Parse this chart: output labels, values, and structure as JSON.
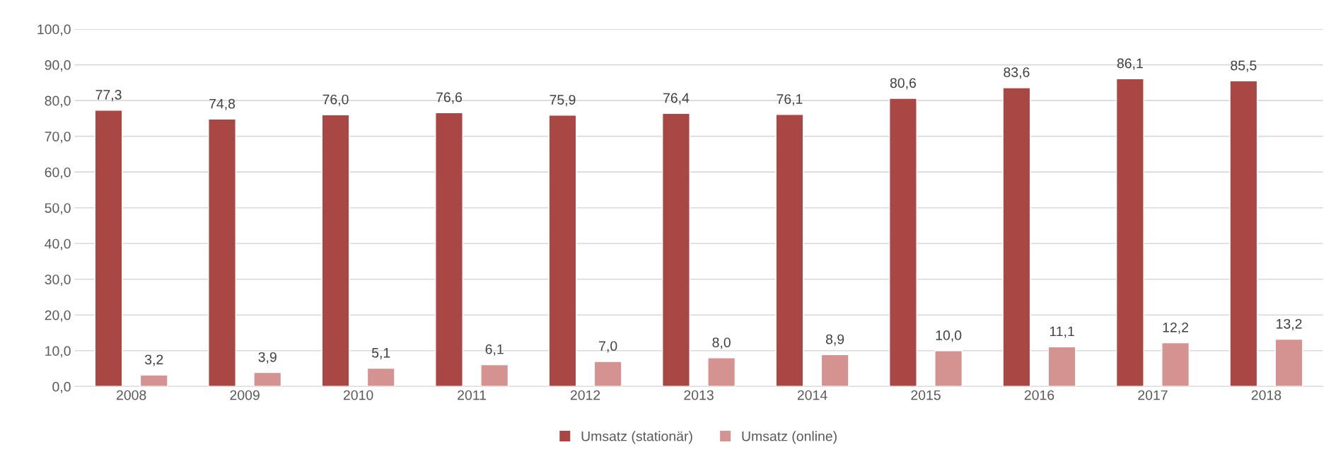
{
  "chart_data": {
    "type": "bar",
    "categories": [
      "2008",
      "2009",
      "2010",
      "2011",
      "2012",
      "2013",
      "2014",
      "2015",
      "2016",
      "2017",
      "2018"
    ],
    "series": [
      {
        "name": "Umsatz (stationär)",
        "color": "#a94744",
        "values": [
          77.3,
          74.8,
          76.0,
          76.6,
          75.9,
          76.4,
          76.1,
          80.6,
          83.6,
          86.1,
          85.5
        ],
        "value_labels": [
          "77,3",
          "74,8",
          "76,0",
          "76,6",
          "75,9",
          "76,4",
          "76,1",
          "80,6",
          "83,6",
          "86,1",
          "85,5"
        ]
      },
      {
        "name": "Umsatz (online)",
        "color": "#d49391",
        "values": [
          3.2,
          3.9,
          5.1,
          6.1,
          7.0,
          8.0,
          8.9,
          10.0,
          11.1,
          12.2,
          13.2
        ],
        "value_labels": [
          "3,2",
          "3,9",
          "5,1",
          "6,1",
          "7,0",
          "8,0",
          "8,9",
          "10,0",
          "11,1",
          "12,2",
          "13,2"
        ]
      }
    ],
    "ylim": [
      0,
      100
    ],
    "yticks": [
      {
        "value": 0,
        "label": "0,0"
      },
      {
        "value": 10,
        "label": "10,0"
      },
      {
        "value": 20,
        "label": "20,0"
      },
      {
        "value": 30,
        "label": "30,0"
      },
      {
        "value": 40,
        "label": "40,0"
      },
      {
        "value": 50,
        "label": "50,0"
      },
      {
        "value": 60,
        "label": "60,0"
      },
      {
        "value": 70,
        "label": "70,0"
      },
      {
        "value": 80,
        "label": "80,0"
      },
      {
        "value": 90,
        "label": "90,0"
      },
      {
        "value": 100,
        "label": "100,0"
      }
    ],
    "grid": "y",
    "legend": "bottom"
  }
}
